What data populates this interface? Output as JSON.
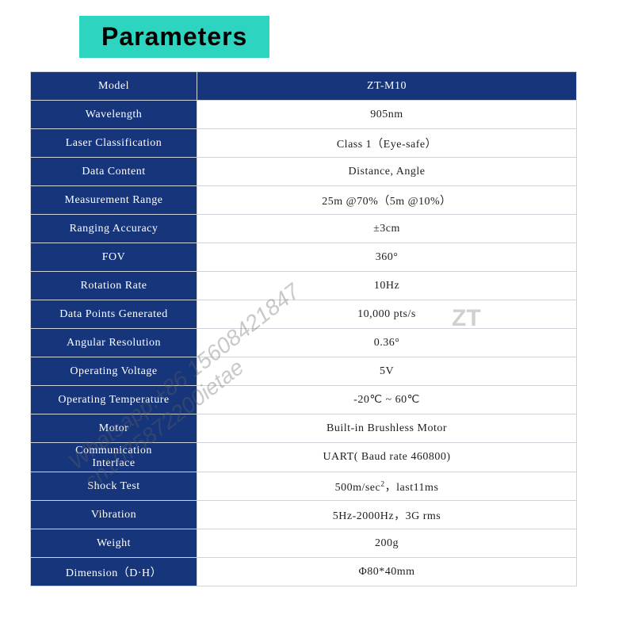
{
  "title": "Parameters",
  "colors": {
    "title_bg": "#2dd4bf",
    "header_bg": "#16357a",
    "header_text": "#ffffff",
    "cell_border": "#cfd4da",
    "value_bg": "#ffffff",
    "value_text": "#1f1f1f",
    "watermark": "rgba(100,100,100,0.35)"
  },
  "table": {
    "header": {
      "label": "Model",
      "value": "ZT-M10"
    },
    "rows": [
      {
        "label": "Wavelength",
        "value": "905nm"
      },
      {
        "label": "Laser Classification",
        "value": "Class 1（Eye-safe）"
      },
      {
        "label": "Data Content",
        "value": "Distance, Angle"
      },
      {
        "label": "Measurement Range",
        "value": "25m @70%（5m @10%）"
      },
      {
        "label": "Ranging Accuracy",
        "value": "±3cm"
      },
      {
        "label": "FOV",
        "value": "360°"
      },
      {
        "label": "Rotation Rate",
        "value": "10Hz"
      },
      {
        "label": "Data Points Generated",
        "value": "10,000 pts/s"
      },
      {
        "label": "Angular Resolution",
        "value": "0.36°"
      },
      {
        "label": "Operating Voltage",
        "value": "5V"
      },
      {
        "label": "Operating Temperature",
        "value": "-20℃ ~ 60℃"
      },
      {
        "label": "Motor",
        "value": "Built-in Brushless Motor"
      },
      {
        "label": "Communication Interface",
        "value": "UART( Baud rate 460800)",
        "twoLineLabel": true
      },
      {
        "label": "Shock Test",
        "value_html": "500m/sec<sup>2</sup>，last11ms"
      },
      {
        "label": "Vibration",
        "value": "5Hz-2000Hz，3G rms"
      },
      {
        "label": "Weight",
        "value": "200g"
      },
      {
        "label": "Dimension（D·H）",
        "value": "Φ80*40mm"
      }
    ]
  },
  "watermarks": {
    "diag": "Whatsapp:+86 15608421847\ncn1075872200ietae",
    "side": "ZT"
  }
}
